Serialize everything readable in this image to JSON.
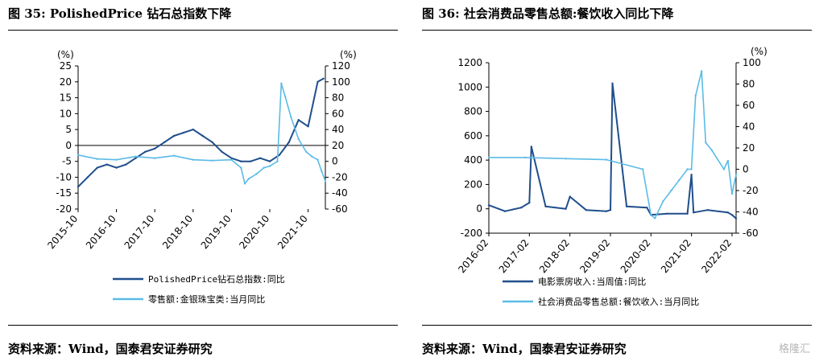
{
  "left": {
    "title": "图 35: PolishedPrice 钻石总指数下降",
    "source": "资料来源：Wind，国泰君安证券研究"
  },
  "right": {
    "title": "图 36: 社会消费品零售总额:餐饮收入同比下降",
    "source": "资料来源：Wind，国泰君安证券研究"
  },
  "watermark": "格隆汇",
  "chart_data": [
    {
      "type": "line",
      "left_unit": "(%)",
      "right_unit": "(%)",
      "ylim": [
        -20,
        25
      ],
      "y2lim": [
        -60,
        120
      ],
      "left_ticks": [
        "25",
        "20",
        "15",
        "10",
        "5",
        "0",
        "-5",
        "-10",
        "-15",
        "-20"
      ],
      "right_ticks": [
        "120",
        "100",
        "80",
        "60",
        "40",
        "20",
        "0",
        "-20",
        "-40",
        "-60"
      ],
      "x_tick_labels": [
        "2015-10",
        "2016-10",
        "2017-10",
        "2018-10",
        "2019-10",
        "2020-10",
        "2021-10"
      ],
      "series": [
        {
          "name": "PolishedPrice钻石总指数:同比",
          "axis": "left",
          "color": "#1f4e8c",
          "x": [
            2015.75,
            2016.0,
            2016.25,
            2016.5,
            2016.75,
            2017.0,
            2017.25,
            2017.5,
            2017.75,
            2018.0,
            2018.25,
            2018.5,
            2018.75,
            2019.0,
            2019.25,
            2019.5,
            2019.75,
            2020.0,
            2020.25,
            2020.5,
            2020.75,
            2021.0,
            2021.25,
            2021.5,
            2021.75,
            2022.0,
            2022.15
          ],
          "y": [
            -13,
            -10,
            -7,
            -6,
            -7,
            -6,
            -4,
            -2,
            -1,
            1,
            3,
            4,
            5,
            3,
            1,
            -2,
            -4,
            -5,
            -5,
            -4,
            -5,
            -3,
            1,
            8,
            6,
            20,
            21
          ]
        },
        {
          "name": "零售额:金银珠宝类:当月同比",
          "axis": "right",
          "color": "#5bbbe6",
          "x": [
            2015.75,
            2016.25,
            2016.75,
            2017.25,
            2017.75,
            2018.25,
            2018.75,
            2019.25,
            2019.75,
            2020.0,
            2020.1,
            2020.2,
            2020.4,
            2020.6,
            2020.75,
            2020.95,
            2021.05,
            2021.15,
            2021.3,
            2021.5,
            2021.7,
            2021.85,
            2022.0,
            2022.1,
            2022.2
          ],
          "y": [
            8,
            3,
            2,
            6,
            4,
            7,
            2,
            1,
            2,
            -8,
            -28,
            -22,
            -16,
            -8,
            -6,
            0,
            98,
            82,
            56,
            28,
            12,
            6,
            2,
            -12,
            -25
          ]
        }
      ]
    },
    {
      "type": "line",
      "left_unit": "",
      "right_unit": "(%)",
      "ylim": [
        -200,
        1200
      ],
      "y2lim": [
        -60,
        100
      ],
      "left_ticks": [
        "1200",
        "1000",
        "800",
        "600",
        "400",
        "200",
        "0",
        "-200"
      ],
      "right_ticks": [
        "100",
        "80",
        "60",
        "40",
        "20",
        "0",
        "-20",
        "-40",
        "-60"
      ],
      "x_tick_labels": [
        "2016-02",
        "2017-02",
        "2018-02",
        "2019-02",
        "2020-02",
        "2021-02",
        "2022-02"
      ],
      "series": [
        {
          "name": "电影票房收入:当周值:同比",
          "axis": "left",
          "color": "#1f4e8c",
          "x": [
            2016.1,
            2016.5,
            2016.9,
            2017.1,
            2017.15,
            2017.5,
            2018.0,
            2018.1,
            2018.5,
            2019.0,
            2019.1,
            2019.15,
            2019.5,
            2020.0,
            2020.1,
            2020.5,
            2021.0,
            2021.1,
            2021.15,
            2021.5,
            2022.0,
            2022.1,
            2022.2
          ],
          "y": [
            30,
            -20,
            10,
            50,
            510,
            20,
            0,
            100,
            -10,
            -20,
            -10,
            1030,
            20,
            10,
            -50,
            -40,
            -40,
            280,
            -30,
            -10,
            -30,
            -50,
            -80
          ]
        },
        {
          "name": "社会消费品零售总额:餐饮收入:当月同比",
          "axis": "right",
          "color": "#5bbbe6",
          "x": [
            2016.1,
            2017.0,
            2018.0,
            2019.0,
            2019.9,
            2020.1,
            2020.2,
            2020.4,
            2020.6,
            2020.8,
            2021.0,
            2021.1,
            2021.2,
            2021.35,
            2021.45,
            2021.6,
            2021.9,
            2022.0,
            2022.1,
            2022.2
          ],
          "y": [
            11,
            11,
            10,
            9,
            0,
            -43,
            -46,
            -30,
            -20,
            -10,
            0,
            0,
            69,
            92,
            25,
            18,
            0,
            8,
            -23,
            -5
          ]
        }
      ]
    }
  ]
}
